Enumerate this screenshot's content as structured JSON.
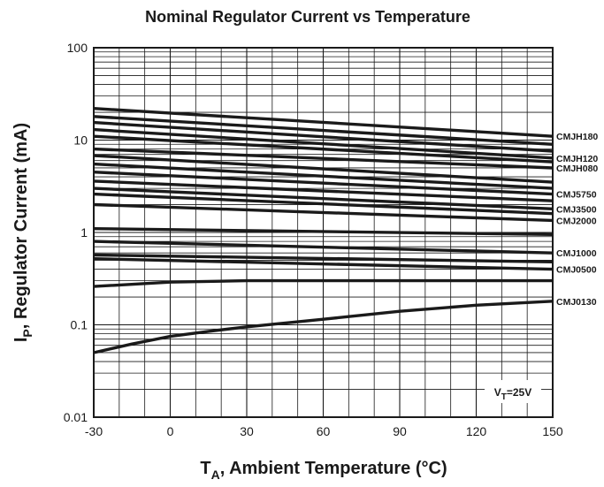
{
  "chart_data": {
    "type": "line",
    "title": "Nominal Regulator Current vs Temperature",
    "xlabel": {
      "main": "T",
      "sub": "A",
      "rest": ", Ambient Temperature (°C)"
    },
    "ylabel": {
      "main": "I",
      "sub": "P",
      "rest": ", Regulator Current (mA)"
    },
    "xlim": [
      -30,
      150
    ],
    "ylim": [
      0.01,
      100
    ],
    "yscale": "log",
    "grid": true,
    "x_ticks": [
      "-30",
      "0",
      "30",
      "60",
      "90",
      "120",
      "150"
    ],
    "y_ticks": [
      {
        "value": 100,
        "label": "100"
      },
      {
        "value": 10,
        "label": "10"
      },
      {
        "value": 1,
        "label": "1"
      },
      {
        "value": 0.1,
        "label": "0.1"
      },
      {
        "value": 0.01,
        "label": "0.01"
      }
    ],
    "annotation": {
      "main": "V",
      "sub": "T",
      "rest": "=25V"
    },
    "series": [
      {
        "name": "CMJH180",
        "x": [
          -30,
          150
        ],
        "y": [
          22,
          11
        ]
      },
      {
        "name": "",
        "x": [
          -30,
          150
        ],
        "y": [
          18,
          9
        ]
      },
      {
        "name": "",
        "x": [
          -30,
          150
        ],
        "y": [
          15.5,
          7.6
        ]
      },
      {
        "name": "CMJH120",
        "x": [
          -30,
          150
        ],
        "y": [
          13,
          6.4
        ]
      },
      {
        "name": "",
        "x": [
          -30,
          150
        ],
        "y": [
          11,
          5.8
        ]
      },
      {
        "name": "CMJH080",
        "x": [
          -30,
          150
        ],
        "y": [
          8,
          5
        ]
      },
      {
        "name": "",
        "x": [
          -30,
          150
        ],
        "y": [
          6.8,
          3.5
        ]
      },
      {
        "name": "",
        "x": [
          -30,
          150
        ],
        "y": [
          5.5,
          3
        ]
      },
      {
        "name": "CMJ5750",
        "x": [
          -30,
          150
        ],
        "y": [
          4.5,
          2.6
        ]
      },
      {
        "name": "",
        "x": [
          -30,
          150
        ],
        "y": [
          3.6,
          2.2
        ]
      },
      {
        "name": "CMJ3500",
        "x": [
          -30,
          150
        ],
        "y": [
          3,
          1.8
        ]
      },
      {
        "name": "",
        "x": [
          -30,
          150
        ],
        "y": [
          2.6,
          1.6
        ]
      },
      {
        "name": "CMJ2000",
        "x": [
          -30,
          150
        ],
        "y": [
          2,
          1.35
        ]
      },
      {
        "name": "",
        "x": [
          -30,
          150
        ],
        "y": [
          1.1,
          0.95
        ]
      },
      {
        "name": "CMJ1000",
        "x": [
          -30,
          150
        ],
        "y": [
          0.8,
          0.6
        ]
      },
      {
        "name": "",
        "x": [
          -30,
          150
        ],
        "y": [
          0.57,
          0.48
        ]
      },
      {
        "name": "CMJ0500",
        "x": [
          -30,
          150
        ],
        "y": [
          0.52,
          0.4
        ]
      },
      {
        "name": "",
        "x": [
          -30,
          0,
          30,
          60,
          90,
          120,
          150
        ],
        "y": [
          0.26,
          0.29,
          0.3,
          0.3,
          0.3,
          0.3,
          0.3
        ]
      },
      {
        "name": "CMJ0130",
        "x": [
          -30,
          -15,
          0,
          15,
          30,
          60,
          90,
          120,
          150
        ],
        "y": [
          0.05,
          0.062,
          0.075,
          0.085,
          0.095,
          0.115,
          0.14,
          0.163,
          0.18
        ]
      }
    ]
  }
}
